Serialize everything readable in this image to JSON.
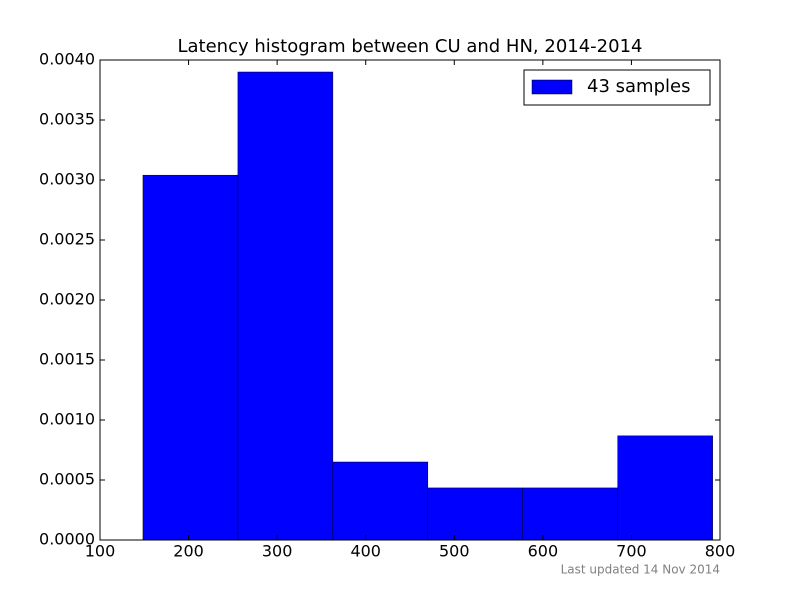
{
  "chart_data": {
    "type": "histogram",
    "title": "Latency histogram between CU and HN, 2014-2014",
    "bins": [
      148.5,
      255.7,
      362.9,
      470.1,
      577.3,
      684.5,
      791.7
    ],
    "series": [
      {
        "name": "43 samples",
        "color": "#0000ff",
        "values": [
          0.00304,
          0.0039,
          0.00065,
          0.000434,
          0.000434,
          0.000868
        ]
      }
    ],
    "xlim": [
      100,
      800
    ],
    "xticks": [
      100,
      200,
      300,
      400,
      500,
      600,
      700,
      800
    ],
    "ylim": [
      0,
      0.004
    ],
    "yticks": [
      {
        "value": 0,
        "label": "0.0000"
      },
      {
        "value": 0.0005,
        "label": "0.0005"
      },
      {
        "value": 0.001,
        "label": "0.0010"
      },
      {
        "value": 0.0015,
        "label": "0.0015"
      },
      {
        "value": 0.002,
        "label": "0.0020"
      },
      {
        "value": 0.0025,
        "label": "0.0025"
      },
      {
        "value": 0.003,
        "label": "0.0030"
      },
      {
        "value": 0.0035,
        "label": "0.0035"
      },
      {
        "value": 0.004,
        "label": "0.0040"
      }
    ],
    "legend": "upper right",
    "grid": false,
    "annotation": "Last updated 14 Nov 2014"
  }
}
